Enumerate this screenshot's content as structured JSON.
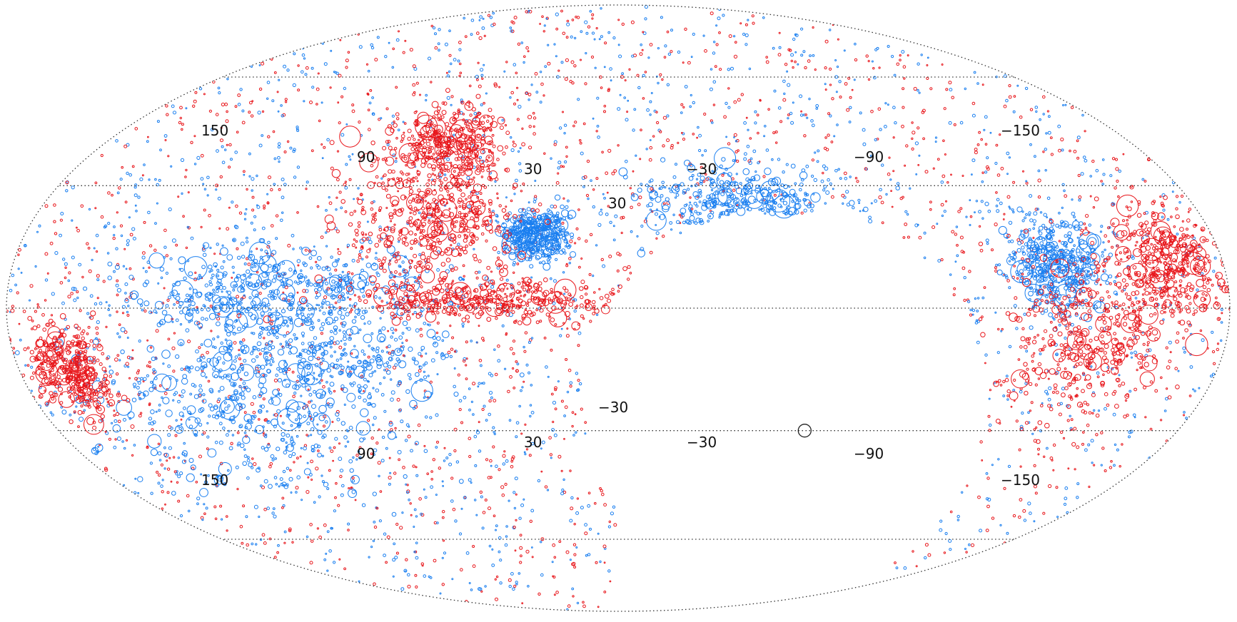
{
  "projection": "Mollweide all-sky",
  "colors": {
    "positive": "#e8161b",
    "negative": "#1a7ff0",
    "grid": "#333333",
    "background": "#ffffff"
  },
  "labels": {
    "upper": {
      "l150": "150",
      "l90": "90",
      "l30": "30",
      "lm30": "−30",
      "lm90": "−90",
      "lm150": "−150",
      "lat30": "30"
    },
    "lower": {
      "l150": "150",
      "l90": "90",
      "l30": "30",
      "lm30": "−30",
      "lm90": "−90",
      "lm150": "−150",
      "latm30": "−30"
    }
  },
  "map_data": {
    "grid_lines": {
      "meridians": [
        -150,
        -90,
        -30,
        30,
        90,
        150
      ],
      "parallels": [
        -60,
        -30,
        0,
        30,
        60
      ]
    },
    "masked_region": "unsurveyed area (blank)",
    "dense_regions": [
      {
        "color": "negative",
        "lon": 120,
        "lat": -25,
        "extent": [
          40,
          18
        ]
      },
      {
        "color": "negative",
        "lon": 85,
        "lat": -10,
        "extent": [
          35,
          14
        ]
      },
      {
        "color": "negative",
        "lon": 100,
        "lat": 5,
        "extent": [
          40,
          8
        ]
      },
      {
        "color": "negative",
        "lon": 25,
        "lat": 18,
        "extent": [
          8,
          5
        ]
      },
      {
        "color": "negative",
        "lon": -40,
        "lat": 25,
        "extent": [
          28,
          8
        ]
      },
      {
        "color": "negative",
        "lon": -130,
        "lat": 10,
        "extent": [
          12,
          10
        ]
      },
      {
        "color": "positive",
        "lon": 55,
        "lat": 20,
        "extent": [
          22,
          12
        ]
      },
      {
        "color": "positive",
        "lon": 60,
        "lat": 40,
        "extent": [
          18,
          10
        ]
      },
      {
        "color": "positive",
        "lon": -140,
        "lat": -8,
        "extent": [
          20,
          18
        ]
      },
      {
        "color": "positive",
        "lon": -165,
        "lat": 10,
        "extent": [
          14,
          12
        ]
      },
      {
        "color": "positive",
        "lon": 165,
        "lat": -15,
        "extent": [
          10,
          10
        ]
      },
      {
        "color": "positive",
        "lon": 40,
        "lat": 2,
        "extent": [
          35,
          4
        ]
      }
    ],
    "marked_source": {
      "lon": -60,
      "lat": -30
    }
  }
}
